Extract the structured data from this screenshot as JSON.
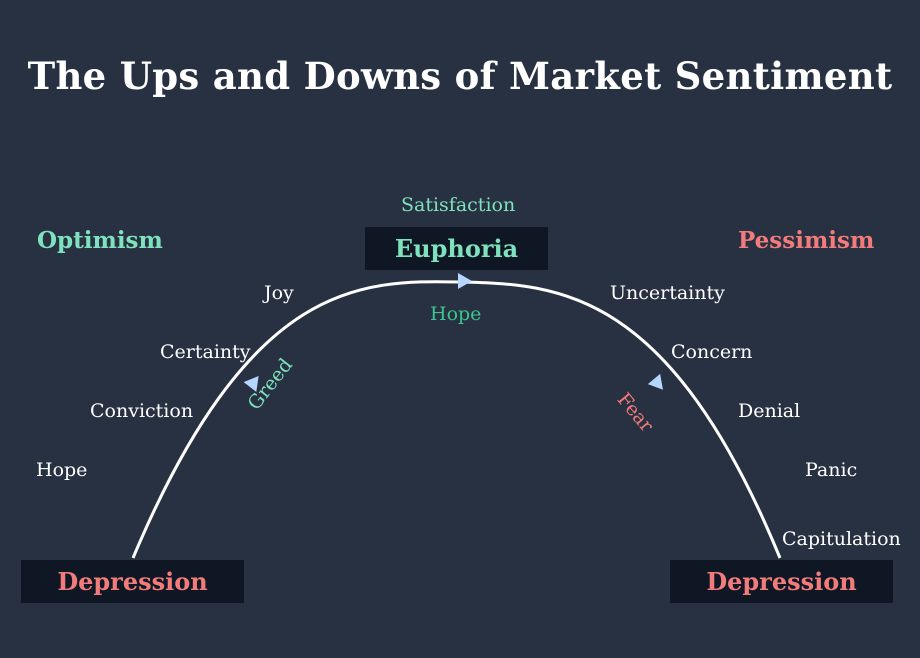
{
  "title": "The Ups and Downs of Market Sentiment",
  "colors": {
    "background": "#283141",
    "box": "#0f1724",
    "optimism": "#7ee2bd",
    "pessimism": "#f27b7b",
    "hope_center": "#3bc58f",
    "arrow": "#b7d6ff",
    "line": "#ffffff"
  },
  "phases": {
    "optimism": "Optimism",
    "pessimism": "Pessimism"
  },
  "peak": {
    "label": "Euphoria",
    "above": "Satisfaction",
    "below": "Hope"
  },
  "bottoms": {
    "left": "Depression",
    "right": "Depression"
  },
  "rising_stages": [
    "Hope",
    "Conviction",
    "Certainty",
    "Joy"
  ],
  "falling_stages": [
    "Uncertainty",
    "Concern",
    "Denial",
    "Panic",
    "Capitulation"
  ],
  "arc_labels": {
    "rising": "Greed",
    "falling": "Fear"
  }
}
